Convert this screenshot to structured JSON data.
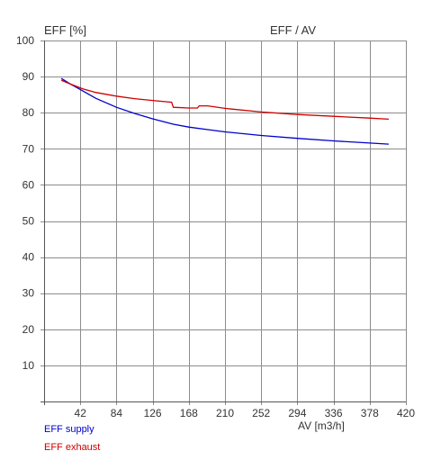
{
  "chart_data": {
    "type": "line",
    "title": "EFF / AV",
    "ylabel": "EFF [%]",
    "xlabel": "AV [m3/h]",
    "xlim": [
      0,
      420
    ],
    "ylim": [
      0,
      100
    ],
    "x_ticks": [
      42,
      84,
      126,
      168,
      210,
      252,
      294,
      336,
      378,
      420
    ],
    "y_ticks": [
      10,
      20,
      30,
      40,
      50,
      60,
      70,
      80,
      90,
      100
    ],
    "grid": true,
    "legend_position": "bottom-left",
    "series": [
      {
        "name": "EFF supply",
        "color": "#0000cc",
        "x": [
          20,
          30,
          45,
          60,
          84,
          105,
          126,
          150,
          168,
          190,
          210,
          252,
          294,
          336,
          378,
          400
        ],
        "y": [
          89.5,
          88.0,
          86.0,
          84.0,
          81.5,
          79.8,
          78.3,
          76.8,
          76.0,
          75.3,
          74.7,
          73.7,
          72.9,
          72.2,
          71.6,
          71.3
        ]
      },
      {
        "name": "EFF exhaust",
        "color": "#cc0000",
        "x": [
          20,
          30,
          45,
          60,
          84,
          105,
          126,
          148,
          150,
          168,
          178,
          180,
          190,
          210,
          252,
          294,
          336,
          378,
          400
        ],
        "y": [
          89.0,
          88.0,
          86.6,
          85.6,
          84.6,
          83.9,
          83.4,
          82.9,
          81.5,
          81.3,
          81.3,
          81.9,
          81.9,
          81.2,
          80.2,
          79.5,
          79.0,
          78.5,
          78.2
        ]
      }
    ]
  }
}
